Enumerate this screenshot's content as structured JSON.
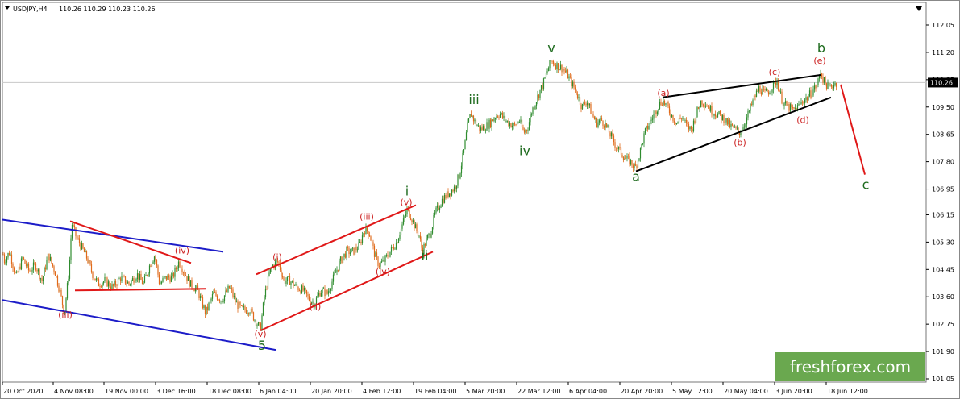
{
  "header": {
    "symbol": "USDJPY,H4",
    "ohlc": "110.26 110.29 110.23 110.26"
  },
  "watermark": "freshforex.com",
  "colors": {
    "candle_up": "#2e8b2e",
    "candle_down": "#e06a1a",
    "channel_blue": "#1c1cc8",
    "channel_red": "#e01818",
    "wedge": "#000000",
    "major_label": "#1e6b1e",
    "minor_label": "#cc2020",
    "price_box": "#000000",
    "watermark_bg": "#6aa84f"
  },
  "chart_data": {
    "type": "candlestick",
    "title": "",
    "xlabel": "",
    "ylabel": "",
    "ylim": [
      101.05,
      111.95
    ],
    "x_ticks": [
      "20 Oct 2020",
      "4 Nov 08:00",
      "19 Nov 00:00",
      "3 Dec 16:00",
      "18 Dec 08:00",
      "6 Jan 04:00",
      "20 Jan 20:00",
      "4 Feb 12:00",
      "19 Feb 04:00",
      "5 Mar 20:00",
      "22 Mar 12:00",
      "6 Apr 04:00",
      "20 Apr 20:00",
      "5 May 12:00",
      "20 May 04:00",
      "3 Jun 20:00",
      "18 Jun 12:00"
    ],
    "y_ticks": [
      "112.05",
      "111.20",
      "110.35",
      "109.50",
      "108.65",
      "107.80",
      "106.95",
      "106.15",
      "105.30",
      "104.45",
      "103.60",
      "102.75",
      "101.90",
      "101.05"
    ],
    "current_price": "110.26",
    "price_path": [
      [
        0,
        105.8
      ],
      [
        5,
        104.7
      ],
      [
        12,
        105.0
      ],
      [
        20,
        104.2
      ],
      [
        28,
        104.8
      ],
      [
        36,
        104.4
      ],
      [
        44,
        104.6
      ],
      [
        52,
        104.1
      ],
      [
        60,
        104.9
      ],
      [
        68,
        104.4
      ],
      [
        74,
        103.8
      ],
      [
        80,
        103.1
      ],
      [
        86,
        104.5
      ],
      [
        89,
        105.9
      ],
      [
        94,
        105.5
      ],
      [
        100,
        105.2
      ],
      [
        108,
        104.8
      ],
      [
        115,
        104.3
      ],
      [
        122,
        104.0
      ],
      [
        130,
        104.1
      ],
      [
        140,
        103.9
      ],
      [
        150,
        104.2
      ],
      [
        160,
        104.0
      ],
      [
        170,
        104.3
      ],
      [
        178,
        104.0
      ],
      [
        186,
        104.6
      ],
      [
        192,
        104.9
      ],
      [
        198,
        104.0
      ],
      [
        206,
        104.2
      ],
      [
        214,
        104.2
      ],
      [
        222,
        104.7
      ],
      [
        228,
        104.4
      ],
      [
        236,
        104.0
      ],
      [
        245,
        103.8
      ],
      [
        255,
        103.1
      ],
      [
        265,
        103.7
      ],
      [
        275,
        103.5
      ],
      [
        285,
        103.9
      ],
      [
        293,
        103.4
      ],
      [
        300,
        103.2
      ],
      [
        310,
        103.2
      ],
      [
        318,
        102.8
      ],
      [
        323,
        102.6
      ],
      [
        328,
        103.6
      ],
      [
        334,
        104.3
      ],
      [
        339,
        104.6
      ],
      [
        345,
        104.7
      ],
      [
        352,
        104.1
      ],
      [
        360,
        104.1
      ],
      [
        368,
        103.9
      ],
      [
        376,
        103.8
      ],
      [
        384,
        103.5
      ],
      [
        390,
        103.4
      ],
      [
        398,
        103.8
      ],
      [
        406,
        103.7
      ],
      [
        414,
        104.2
      ],
      [
        422,
        104.7
      ],
      [
        430,
        105.0
      ],
      [
        438,
        105.0
      ],
      [
        446,
        105.2
      ],
      [
        452,
        105.7
      ],
      [
        458,
        105.6
      ],
      [
        465,
        104.9
      ],
      [
        470,
        104.6
      ],
      [
        476,
        104.7
      ],
      [
        484,
        105.0
      ],
      [
        492,
        105.3
      ],
      [
        500,
        105.9
      ],
      [
        505,
        106.3
      ],
      [
        510,
        106.1
      ],
      [
        516,
        105.7
      ],
      [
        520,
        105.5
      ],
      [
        524,
        105.0
      ],
      [
        528,
        105.3
      ],
      [
        534,
        105.6
      ],
      [
        540,
        106.2
      ],
      [
        548,
        106.6
      ],
      [
        556,
        106.8
      ],
      [
        564,
        107.0
      ],
      [
        570,
        107.4
      ],
      [
        576,
        108.2
      ],
      [
        580,
        108.9
      ],
      [
        584,
        109.3
      ],
      [
        590,
        109.0
      ],
      [
        596,
        108.8
      ],
      [
        602,
        108.9
      ],
      [
        608,
        109.0
      ],
      [
        614,
        109.2
      ],
      [
        620,
        109.3
      ],
      [
        626,
        109.1
      ],
      [
        632,
        109.0
      ],
      [
        638,
        108.9
      ],
      [
        644,
        109.1
      ],
      [
        650,
        108.7
      ],
      [
        655,
        108.9
      ],
      [
        660,
        109.4
      ],
      [
        665,
        109.7
      ],
      [
        670,
        110.0
      ],
      [
        675,
        110.3
      ],
      [
        680,
        110.7
      ],
      [
        684,
        110.95
      ],
      [
        690,
        110.8
      ],
      [
        698,
        110.7
      ],
      [
        704,
        110.5
      ],
      [
        710,
        110.2
      ],
      [
        716,
        109.9
      ],
      [
        722,
        109.5
      ],
      [
        728,
        109.7
      ],
      [
        734,
        109.3
      ],
      [
        740,
        109.0
      ],
      [
        746,
        109.1
      ],
      [
        752,
        108.9
      ],
      [
        758,
        108.6
      ],
      [
        764,
        108.3
      ],
      [
        770,
        108.1
      ],
      [
        776,
        107.9
      ],
      [
        782,
        107.8
      ],
      [
        788,
        107.6
      ],
      [
        792,
        107.9
      ],
      [
        796,
        108.3
      ],
      [
        800,
        108.7
      ],
      [
        806,
        109.0
      ],
      [
        812,
        109.3
      ],
      [
        818,
        109.6
      ],
      [
        822,
        109.7
      ],
      [
        828,
        109.5
      ],
      [
        834,
        109.2
      ],
      [
        840,
        109.0
      ],
      [
        846,
        109.2
      ],
      [
        852,
        108.9
      ],
      [
        858,
        108.8
      ],
      [
        864,
        109.3
      ],
      [
        870,
        109.7
      ],
      [
        876,
        109.6
      ],
      [
        882,
        109.4
      ],
      [
        888,
        109.3
      ],
      [
        894,
        109.2
      ],
      [
        900,
        109.1
      ],
      [
        906,
        108.9
      ],
      [
        912,
        108.8
      ],
      [
        918,
        108.7
      ],
      [
        924,
        109.0
      ],
      [
        930,
        109.4
      ],
      [
        936,
        109.8
      ],
      [
        942,
        110.1
      ],
      [
        948,
        109.9
      ],
      [
        954,
        110.0
      ],
      [
        960,
        110.2
      ],
      [
        964,
        110.3
      ],
      [
        968,
        109.9
      ],
      [
        972,
        109.6
      ],
      [
        978,
        109.5
      ],
      [
        984,
        109.4
      ],
      [
        990,
        109.5
      ],
      [
        996,
        109.7
      ],
      [
        1002,
        109.8
      ],
      [
        1008,
        110.0
      ],
      [
        1014,
        110.2
      ],
      [
        1018,
        110.6
      ],
      [
        1022,
        110.3
      ],
      [
        1028,
        110.1
      ],
      [
        1034,
        110.2
      ],
      [
        1038,
        110.26
      ]
    ],
    "annotations": [
      {
        "text": "(iii)",
        "x": 81,
        "y": 102.95,
        "level": "minor"
      },
      {
        "text": "(iv)",
        "x": 226,
        "y": 104.95,
        "level": "minor"
      },
      {
        "text": "(v)",
        "x": 323,
        "y": 102.35,
        "level": "minor"
      },
      {
        "text": "5",
        "x": 325,
        "y": 101.95,
        "level": "major"
      },
      {
        "text": "(i)",
        "x": 344,
        "y": 104.75,
        "level": "minor"
      },
      {
        "text": "(ii)",
        "x": 391,
        "y": 103.2,
        "level": "minor"
      },
      {
        "text": "(iii)",
        "x": 455,
        "y": 106.0,
        "level": "minor"
      },
      {
        "text": "(iv)",
        "x": 475,
        "y": 104.3,
        "level": "minor"
      },
      {
        "text": "(v)",
        "x": 504,
        "y": 106.45,
        "level": "minor"
      },
      {
        "text": "i",
        "x": 505,
        "y": 106.75,
        "level": "major"
      },
      {
        "text": "ii",
        "x": 527,
        "y": 104.75,
        "level": "major"
      },
      {
        "text": "iii",
        "x": 588,
        "y": 109.6,
        "level": "major"
      },
      {
        "text": "iv",
        "x": 651,
        "y": 108.0,
        "level": "major"
      },
      {
        "text": "v",
        "x": 684,
        "y": 111.2,
        "level": "major"
      },
      {
        "text": "(a)",
        "x": 823,
        "y": 109.85,
        "level": "minor"
      },
      {
        "text": "a",
        "x": 789,
        "y": 107.2,
        "level": "major"
      },
      {
        "text": "(b)",
        "x": 918,
        "y": 108.3,
        "level": "minor"
      },
      {
        "text": "(c)",
        "x": 961,
        "y": 110.5,
        "level": "minor"
      },
      {
        "text": "(d)",
        "x": 996,
        "y": 109.0,
        "level": "minor"
      },
      {
        "text": "(e)",
        "x": 1017,
        "y": 110.85,
        "level": "minor"
      },
      {
        "text": "b",
        "x": 1019,
        "y": 111.2,
        "level": "major"
      },
      {
        "text": "c",
        "x": 1074,
        "y": 106.95,
        "level": "major"
      }
    ],
    "lines": [
      {
        "kind": "blue",
        "points": [
          [
            3,
            106.0
          ],
          [
            277,
            105.0
          ]
        ]
      },
      {
        "kind": "blue",
        "points": [
          [
            3,
            103.5
          ],
          [
            342,
            101.95
          ]
        ]
      },
      {
        "kind": "red",
        "points": [
          [
            87,
            105.95
          ],
          [
            237,
            104.65
          ]
        ]
      },
      {
        "kind": "red",
        "points": [
          [
            93,
            103.8
          ],
          [
            255,
            103.85
          ]
        ]
      },
      {
        "kind": "red",
        "points": [
          [
            318,
            104.3
          ],
          [
            516,
            106.45
          ]
        ]
      },
      {
        "kind": "red",
        "points": [
          [
            323,
            102.55
          ],
          [
            537,
            105.0
          ]
        ]
      },
      {
        "kind": "wedge",
        "points": [
          [
            822,
            109.8
          ],
          [
            1019,
            110.5
          ]
        ]
      },
      {
        "kind": "wedge",
        "points": [
          [
            789,
            107.5
          ],
          [
            1031,
            109.8
          ]
        ]
      },
      {
        "kind": "forecast",
        "points": [
          [
            1043,
            110.2
          ],
          [
            1073,
            107.4
          ]
        ]
      }
    ]
  }
}
